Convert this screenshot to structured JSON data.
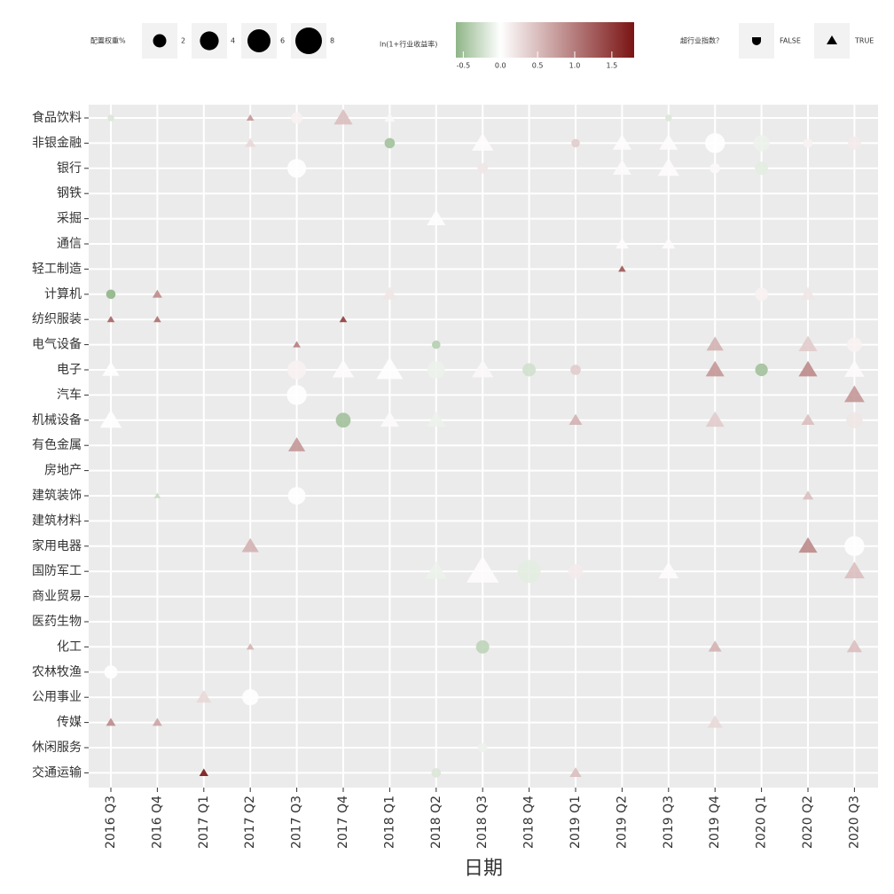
{
  "chart_data": {
    "type": "bubble",
    "x_label": "日期",
    "size_legend_title": "配置权重%",
    "size_legend_values": [
      2,
      4,
      6,
      8
    ],
    "color_legend_title": "ln(1+行业收益率)",
    "color_lim": [
      -0.6,
      1.8
    ],
    "color_ticks": [
      {
        "value": -0.5,
        "label": "-0.5"
      },
      {
        "value": 0,
        "label": "0.0"
      },
      {
        "value": 0.5,
        "label": "0.5"
      },
      {
        "value": 1,
        "label": "1.0"
      },
      {
        "value": 1.5,
        "label": "1.5"
      }
    ],
    "color_low": "#8fb587",
    "color_mid": "#ffffff",
    "color_high": "#7a1414",
    "shape_legend_title": "超行业指数？",
    "x_categories": [
      "2016 Q3",
      "2016 Q4",
      "2017 Q1",
      "2017 Q2",
      "2017 Q3",
      "2017 Q4",
      "2018 Q1",
      "2018 Q2",
      "2018 Q3",
      "2018 Q4",
      "2019 Q1",
      "2019 Q2",
      "2019 Q3",
      "2019 Q4",
      "2020 Q1",
      "2020 Q2",
      "2020 Q3"
    ],
    "y_categories": [
      "食品饮料",
      "非银金融",
      "银行",
      "钢铁",
      "采掘",
      "通信",
      "轻工制造",
      "计算机",
      "纺织服装",
      "电气设备",
      "电子",
      "汽车",
      "机械设备",
      "有色金属",
      "房地产",
      "建筑装饰",
      "建筑材料",
      "家用电器",
      "国防军工",
      "商业贸易",
      "医药生物",
      "化工",
      "农林牧渔",
      "公用事业",
      "传媒",
      "休闲服务",
      "交通运输"
    ],
    "grid": true,
    "series": [
      {
        "name": "FALSE",
        "shape": "circle",
        "x": [
          "2016 Q3",
          "2017 Q3",
          "2019 Q3",
          "2018 Q1",
          "2019 Q1",
          "2019 Q4",
          "2020 Q1",
          "2020 Q2",
          "2020 Q3",
          "2017 Q3",
          "2018 Q3",
          "2019 Q4",
          "2020 Q1",
          "2016 Q3",
          "2020 Q1",
          "2018 Q2",
          "2020 Q3",
          "2017 Q3",
          "2018 Q2",
          "2018 Q4",
          "2019 Q1",
          "2020 Q1",
          "2017 Q3",
          "2017 Q4",
          "2020 Q3",
          "2017 Q3",
          "2020 Q3",
          "2018 Q4",
          "2019 Q1",
          "2018 Q3",
          "2016 Q3",
          "2017 Q2",
          "2018 Q3",
          "2018 Q2"
        ],
        "y": [
          "食品饮料",
          "食品饮料",
          "食品饮料",
          "非银金融",
          "非银金融",
          "非银金融",
          "非银金融",
          "非银金融",
          "非银金融",
          "银行",
          "银行",
          "银行",
          "银行",
          "计算机",
          "计算机",
          "电气设备",
          "电气设备",
          "电子",
          "电子",
          "电子",
          "电子",
          "电子",
          "汽车",
          "机械设备",
          "机械设备",
          "建筑装饰",
          "家用电器",
          "国防军工",
          "国防军工",
          "化工",
          "农林牧渔",
          "公用事业",
          "休闲服务",
          "交通运输"
        ],
        "size": [
          0.5,
          1.5,
          0.5,
          1.2,
          0.8,
          4.5,
          3,
          1,
          2,
          4,
          1.2,
          1.2,
          2,
          1,
          2,
          0.8,
          2.5,
          4,
          3.5,
          2,
          1.2,
          1.8,
          4.5,
          2.5,
          3,
          3.5,
          4.5,
          6,
          2.5,
          2,
          2,
          3,
          1,
          1
        ],
        "values": [
          -0.2,
          0.1,
          -0.2,
          -0.5,
          0.4,
          0,
          -0.1,
          0.1,
          0.15,
          0,
          0.2,
          0.05,
          -0.15,
          -0.6,
          0.1,
          -0.4,
          0.1,
          0.1,
          -0.1,
          -0.25,
          0.4,
          -0.5,
          0,
          -0.5,
          0.2,
          0,
          0,
          -0.15,
          0.15,
          -0.35,
          0,
          0,
          -0.1,
          -0.2
        ]
      },
      {
        "name": "TRUE",
        "shape": "triangle",
        "x": [
          "2017 Q2",
          "2017 Q4",
          "2018 Q1",
          "2017 Q2",
          "2018 Q3",
          "2019 Q2",
          "2019 Q3",
          "2019 Q2",
          "2019 Q3",
          "2018 Q2",
          "2019 Q2",
          "2019 Q3",
          "2019 Q2",
          "2016 Q4",
          "2018 Q1",
          "2020 Q2",
          "2016 Q3",
          "2016 Q4",
          "2017 Q4",
          "2017 Q3",
          "2019 Q4",
          "2020 Q2",
          "2016 Q3",
          "2017 Q4",
          "2018 Q1",
          "2018 Q3",
          "2019 Q4",
          "2020 Q2",
          "2020 Q3",
          "2020 Q3",
          "2016 Q3",
          "2018 Q1",
          "2018 Q2",
          "2019 Q1",
          "2019 Q4",
          "2020 Q2",
          "2017 Q3",
          "2016 Q4",
          "2020 Q2",
          "2017 Q2",
          "2020 Q2",
          "2018 Q3",
          "2018 Q2",
          "2019 Q3",
          "2020 Q3",
          "2019 Q4",
          "2020 Q3",
          "2017 Q2",
          "2017 Q1",
          "2016 Q3",
          "2016 Q4",
          "2019 Q4",
          "2017 Q1",
          "2019 Q1"
        ],
        "y": [
          "食品饮料",
          "食品饮料",
          "食品饮料",
          "非银金融",
          "非银金融",
          "非银金融",
          "非银金融",
          "银行",
          "银行",
          "采掘",
          "通信",
          "通信",
          "轻工制造",
          "计算机",
          "计算机",
          "计算机",
          "纺织服装",
          "纺织服装",
          "纺织服装",
          "电气设备",
          "电气设备",
          "电气设备",
          "电子",
          "电子",
          "电子",
          "电子",
          "电子",
          "电子",
          "电子",
          "汽车",
          "机械设备",
          "机械设备",
          "机械设备",
          "机械设备",
          "机械设备",
          "机械设备",
          "有色金属",
          "建筑装饰",
          "建筑装饰",
          "家用电器",
          "家用电器",
          "国防军工",
          "国防军工",
          "国防军工",
          "国防军工",
          "化工",
          "化工",
          "化工",
          "公用事业",
          "传媒",
          "传媒",
          "传媒",
          "交通运输",
          "交通运输"
        ],
        "size": [
          0.5,
          3,
          1,
          1,
          4,
          3,
          3,
          3,
          4,
          3,
          1.5,
          1.5,
          0.5,
          0.8,
          2,
          2,
          0.5,
          0.5,
          0.5,
          0.5,
          2.5,
          3,
          2.5,
          4,
          6,
          4,
          3,
          3,
          3.5,
          3.5,
          4,
          3,
          3,
          1.5,
          3,
          1.5,
          2.5,
          0.4,
          1,
          2.5,
          3,
          9,
          4,
          3.5,
          3.5,
          1.5,
          2,
          0.5,
          2,
          0.8,
          0.8,
          2,
          0.7,
          1.2
        ],
        "values": [
          0.8,
          0.5,
          0.05,
          0.3,
          0.02,
          0.02,
          0.02,
          0.03,
          0.02,
          0.01,
          0.02,
          0.02,
          1.3,
          0.9,
          0.2,
          0.2,
          1.2,
          1.1,
          1.5,
          1,
          0.6,
          0.4,
          0,
          0.02,
          0,
          0.05,
          0.8,
          0.9,
          0.03,
          0.8,
          0,
          0.03,
          -0.1,
          0.6,
          0.4,
          0.5,
          0.8,
          -0.3,
          0.5,
          0.6,
          0.9,
          0.02,
          -0.1,
          0.02,
          0.5,
          0.6,
          0.5,
          0.6,
          0.3,
          0.9,
          0.7,
          0.3,
          1.9,
          0.5
        ]
      }
    ]
  }
}
